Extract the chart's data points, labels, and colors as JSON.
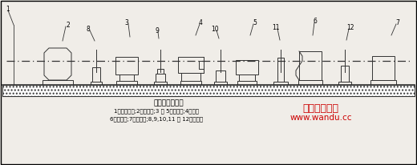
{
  "bg_color": "#f0ede8",
  "title": "试验装置示意图",
  "caption_line1": "1一试验平台;2一原动机;3 和 5一传感器;4一被测",
  "caption_line2": "6一增速机;7一加载器;8,9,10,11 和 12一联轴器",
  "watermark_line1": "万度减速机网",
  "watermark_line2": "www.wandu.cc",
  "border_color": "#000000"
}
